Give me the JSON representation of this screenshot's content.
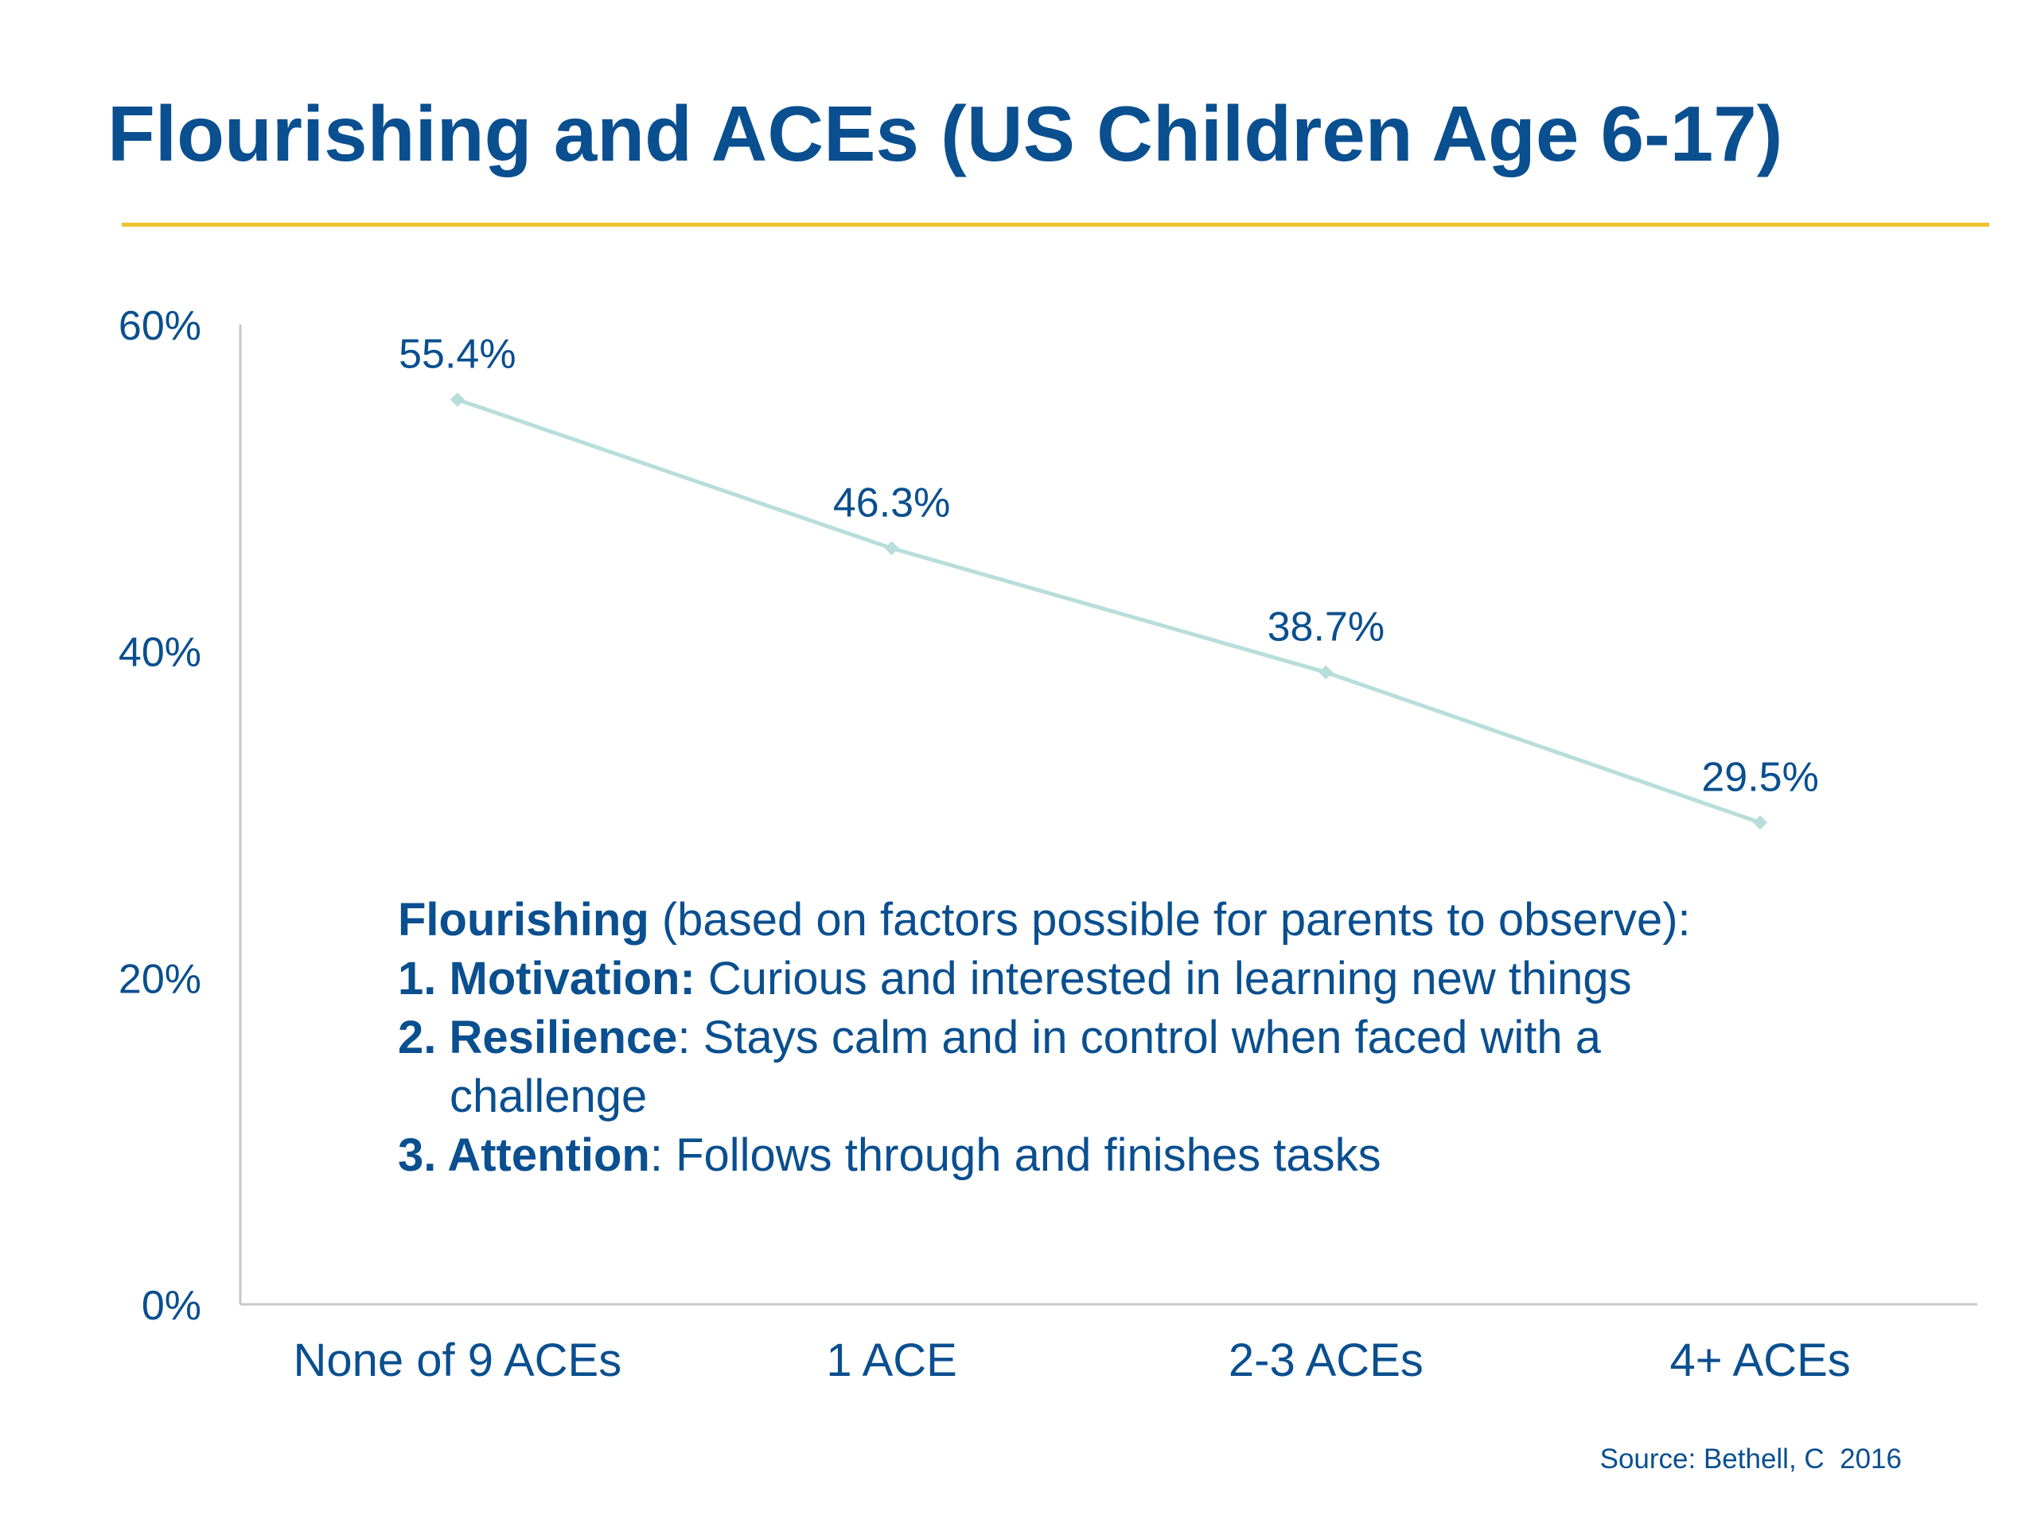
{
  "slide": {
    "title": "Flourishing and ACEs (US Children Age 6-17)",
    "accent_color": "#f2c12e",
    "text_color": "#0a4f8f"
  },
  "chart_data": {
    "type": "line",
    "title": "",
    "xlabel": "",
    "ylabel": "",
    "categories": [
      "None of 9 ACEs",
      "1 ACE",
      "2-3 ACEs",
      "4+ ACEs"
    ],
    "series": [
      {
        "values": [
          55.4,
          46.3,
          38.7,
          29.5
        ],
        "labels": [
          "55.4%",
          "46.3%",
          "38.7%",
          "29.5%"
        ],
        "color": "#b8dedb"
      }
    ],
    "ylim": [
      0,
      60
    ],
    "yticks": [
      0,
      20,
      40,
      60
    ],
    "ytick_labels": [
      "0%",
      "20%",
      "40%",
      "60%"
    ],
    "grid": false,
    "legend": "none"
  },
  "note": {
    "intro_bold": "Flourishing",
    "intro_text": " (based on factors possible for parents to observe):",
    "items": [
      {
        "number": "1. ",
        "term": "Motivation:",
        "text": " Curious and interested in learning new things"
      },
      {
        "number": "2. ",
        "term": "Resilience",
        "text": ": Stays calm and in control when faced with a challenge"
      },
      {
        "number": "3. ",
        "term": "Attention",
        "text": ": Follows through and finishes tasks"
      }
    ]
  },
  "source": "Source: Bethell, C  2016"
}
